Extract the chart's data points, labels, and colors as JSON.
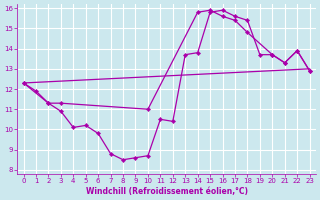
{
  "xlabel": "Windchill (Refroidissement éolien,°C)",
  "bg_color": "#cce8ee",
  "line_color": "#aa00aa",
  "grid_color": "#ffffff",
  "series1_x": [
    0,
    1,
    2,
    3,
    4,
    5,
    6,
    7,
    8,
    9,
    10,
    11,
    12,
    13,
    14,
    15,
    16,
    17,
    18,
    19,
    20,
    21,
    22,
    23
  ],
  "series1_y": [
    12.3,
    11.9,
    11.3,
    10.9,
    10.1,
    10.2,
    9.8,
    8.8,
    8.5,
    8.6,
    8.7,
    10.5,
    10.4,
    13.7,
    13.8,
    15.8,
    15.9,
    15.6,
    15.4,
    13.7,
    13.7,
    13.3,
    13.9,
    12.9
  ],
  "series2_x": [
    0,
    23
  ],
  "series2_y": [
    12.3,
    13.0
  ],
  "series3_x": [
    0,
    2,
    3,
    10,
    14,
    15,
    16,
    17,
    18,
    20,
    21,
    22,
    23
  ],
  "series3_y": [
    12.3,
    11.3,
    11.3,
    11.0,
    15.8,
    15.9,
    15.6,
    15.4,
    14.8,
    13.7,
    13.3,
    13.9,
    12.9
  ],
  "ylim": [
    8,
    16
  ],
  "xlim": [
    -0.5,
    23.5
  ],
  "yticks": [
    8,
    9,
    10,
    11,
    12,
    13,
    14,
    15,
    16
  ],
  "xticks": [
    0,
    1,
    2,
    3,
    4,
    5,
    6,
    7,
    8,
    9,
    10,
    11,
    12,
    13,
    14,
    15,
    16,
    17,
    18,
    19,
    20,
    21,
    22,
    23
  ]
}
